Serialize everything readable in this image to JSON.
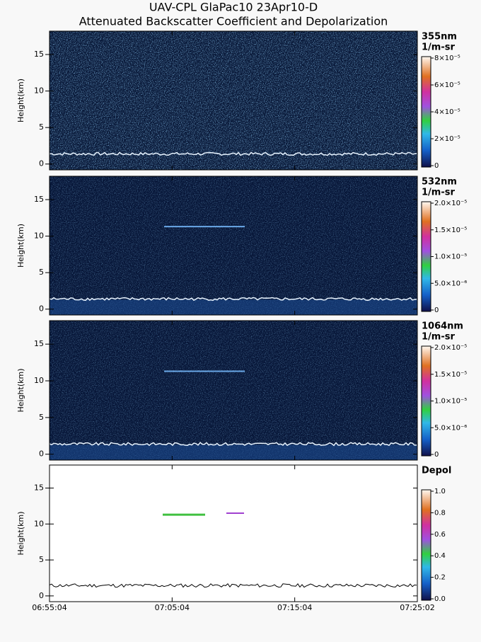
{
  "figure_title": [
    "UAV-CPL GlaPac10 23Apr10-D",
    "Attenuated Backscatter Coefficient and Depolarization"
  ],
  "chart_data": [
    {
      "type": "heatmap",
      "ylabel": "Height(km)",
      "ylim": [
        -0.8,
        18.2
      ],
      "yticks": [
        0,
        5,
        10,
        15
      ],
      "colorbar": {
        "label": [
          "355nm",
          "1/m-sr"
        ],
        "lim": [
          0,
          8e-05
        ],
        "ticks": [
          {
            "value": 0,
            "label": "0"
          },
          {
            "value": 2e-05,
            "label": "2×10⁻⁵"
          },
          {
            "value": 4e-05,
            "label": "4×10⁻⁵"
          },
          {
            "value": 6e-05,
            "label": "6×10⁻⁵"
          },
          {
            "value": 8e-05,
            "label": "8×10⁻⁵"
          }
        ]
      }
    },
    {
      "type": "heatmap",
      "ylabel": "Height(km)",
      "ylim": [
        -0.8,
        18.2
      ],
      "yticks": [
        0,
        5,
        10,
        15
      ],
      "colorbar": {
        "label": [
          "532nm",
          "1/m-sr"
        ],
        "lim": [
          0,
          2e-05
        ],
        "ticks": [
          {
            "value": 0,
            "label": "0"
          },
          {
            "value": 5e-06,
            "label": "5.0×10⁻⁶"
          },
          {
            "value": 1e-05,
            "label": "1.0×10⁻⁵"
          },
          {
            "value": 1.5e-05,
            "label": "1.5×10⁻⁵"
          },
          {
            "value": 2e-05,
            "label": "2.0×10⁻⁵"
          }
        ]
      }
    },
    {
      "type": "heatmap",
      "ylabel": "Height(km)",
      "ylim": [
        -0.8,
        18.2
      ],
      "yticks": [
        0,
        5,
        10,
        15
      ],
      "colorbar": {
        "label": [
          "1064nm",
          "1/m-sr"
        ],
        "lim": [
          0,
          2e-05
        ],
        "ticks": [
          {
            "value": 0,
            "label": "0"
          },
          {
            "value": 5e-06,
            "label": "5.0×10⁻⁶"
          },
          {
            "value": 1e-05,
            "label": "1.0×10⁻⁵"
          },
          {
            "value": 1.5e-05,
            "label": "1.5×10⁻⁵"
          },
          {
            "value": 2e-05,
            "label": "2.0×10⁻⁵"
          }
        ]
      }
    },
    {
      "type": "heatmap",
      "ylabel": "Height(km)",
      "ylim": [
        -0.8,
        18.2
      ],
      "yticks": [
        0,
        5,
        10,
        15
      ],
      "xticks": [
        "06:55:04",
        "07:05:04",
        "07:15:04",
        "07:25:02"
      ],
      "colorbar": {
        "label": [
          "Depol"
        ],
        "lim": [
          0,
          1
        ],
        "ticks": [
          {
            "value": 0,
            "label": "0.0"
          },
          {
            "value": 0.2,
            "label": "0.2"
          },
          {
            "value": 0.4,
            "label": "0.4"
          },
          {
            "value": 0.6,
            "label": "0.6"
          },
          {
            "value": 0.8,
            "label": "0.8"
          },
          {
            "value": 1,
            "label": "1.0"
          }
        ]
      }
    }
  ]
}
